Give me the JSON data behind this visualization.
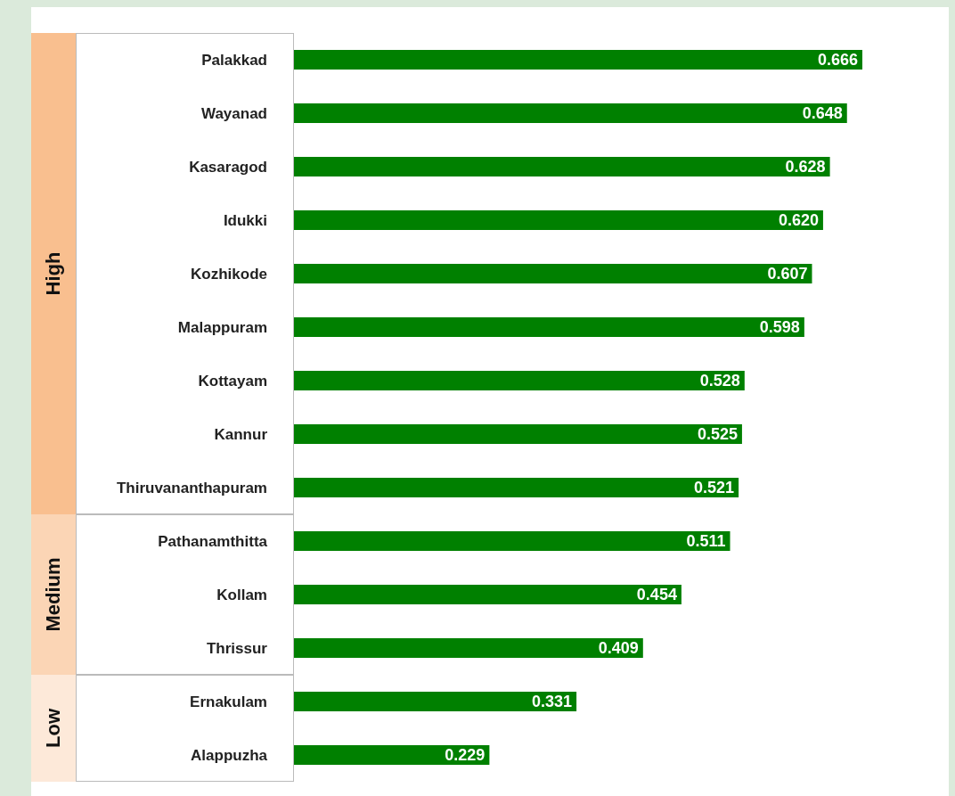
{
  "chart_data": {
    "type": "bar",
    "orientation": "horizontal",
    "color": "#008000",
    "categories": [
      "Palakkad",
      "Wayanad",
      "Kasaragod",
      "Idukki",
      "Kozhikode",
      "Malappuram",
      "Kottayam",
      "Kannur",
      "Thiruvananthapuram",
      "Pathanamthitta",
      "Kollam",
      "Thrissur",
      "Ernakulam",
      "Alappuzha"
    ],
    "values": [
      0.666,
      0.648,
      0.628,
      0.62,
      0.607,
      0.598,
      0.528,
      0.525,
      0.521,
      0.511,
      0.454,
      0.409,
      0.331,
      0.229
    ],
    "value_labels": [
      "0.666",
      "0.648",
      "0.628",
      "0.620",
      "0.607",
      "0.598",
      "0.528",
      "0.525",
      "0.521",
      "0.511",
      "0.454",
      "0.409",
      "0.331",
      "0.229"
    ],
    "annotations": [
      "High",
      "Medium",
      "Low"
    ]
  }
}
